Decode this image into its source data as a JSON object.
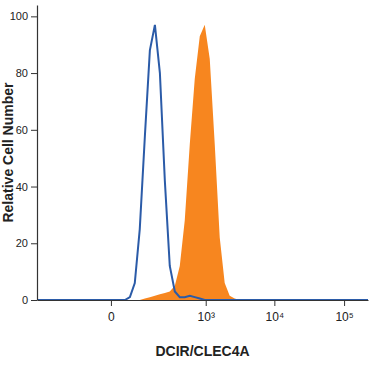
{
  "chart_data": {
    "type": "line",
    "xlabel": "DCIR/CLEC4A",
    "ylabel": "Relative Cell Number",
    "log": "x",
    "x": [
      -480,
      0,
      16,
      27,
      40,
      55,
      73,
      95,
      120,
      150,
      185,
      226,
      274,
      332,
      399,
      478,
      573,
      683,
      814,
      967,
      1149,
      1362,
      1614,
      1910,
      2259,
      2673,
      3156,
      5000,
      220000
    ],
    "series": [
      {
        "type": "line",
        "color": "#2b5ba8",
        "values": [
          0,
          0,
          0,
          0,
          1,
          6,
          25,
          58,
          88,
          97,
          80,
          42,
          12,
          3,
          1,
          1,
          1.5,
          1,
          0.5,
          0,
          0,
          0,
          0,
          0,
          0,
          0,
          0,
          0,
          0
        ]
      },
      {
        "type": "area",
        "color": "#f7861f",
        "values": [
          0,
          0,
          0,
          0,
          0,
          0,
          0,
          0.5,
          1,
          1.5,
          2,
          2.5,
          3,
          5,
          12,
          28,
          55,
          78,
          93,
          97,
          85,
          55,
          22,
          6,
          1.5,
          0.5,
          0,
          0,
          0
        ]
      }
    ],
    "xlim": [
      -480,
      220000
    ],
    "xticks": [
      0,
      {
        "value": 1000,
        "label": "10³"
      },
      {
        "value": 10000,
        "label": "10⁴"
      },
      {
        "value": 100000,
        "label": "10⁵"
      }
    ],
    "ylim": [
      0,
      104
    ],
    "yticks": [
      0,
      20,
      40,
      60,
      80,
      100
    ]
  }
}
